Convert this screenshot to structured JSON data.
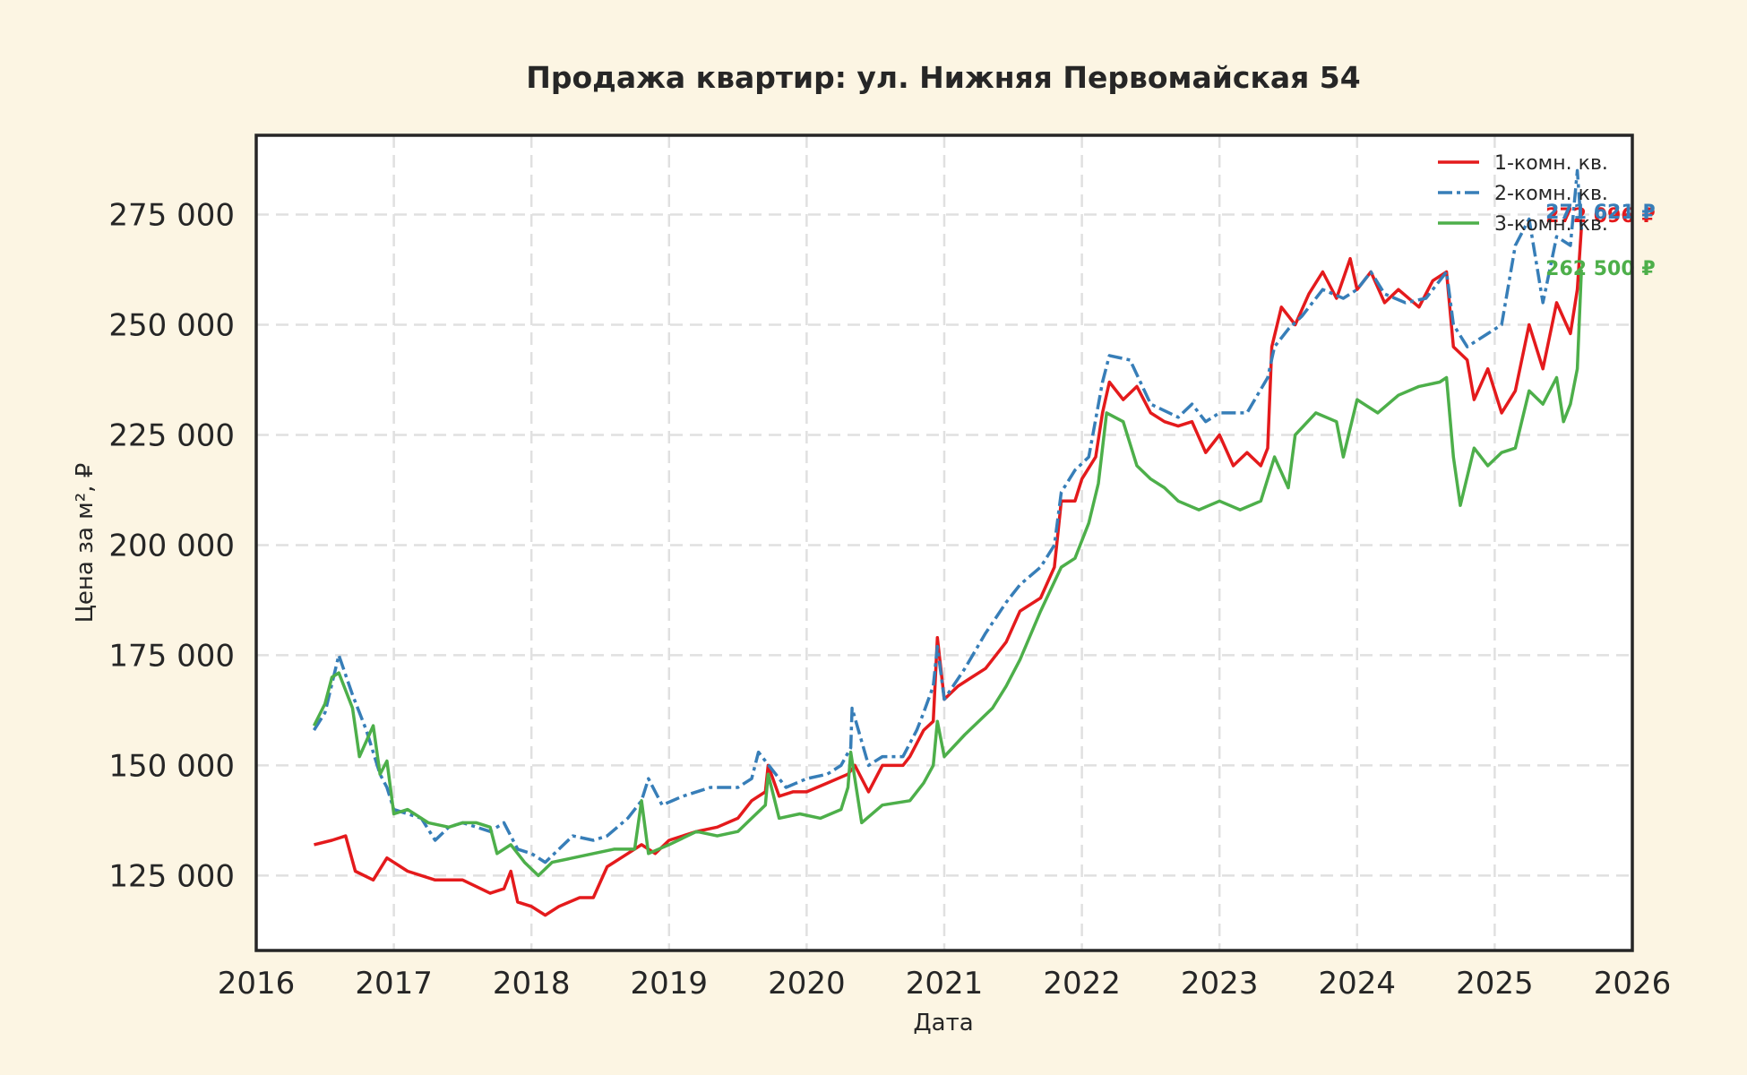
{
  "chart_data": {
    "type": "line",
    "title": "Продажа квартир: ул. Нижняя Первомайская 54",
    "xlabel": "Дата",
    "ylabel": "Цена за м², ₽",
    "xlim": [
      2016,
      2026
    ],
    "ylim": [
      108000,
      293000
    ],
    "x_ticks": [
      "2016",
      "2017",
      "2018",
      "2019",
      "2020",
      "2021",
      "2022",
      "2023",
      "2024",
      "2025",
      "2026"
    ],
    "y_ticks": [
      "125 000",
      "150 000",
      "175 000",
      "200 000",
      "225 000",
      "250 000",
      "275 000"
    ],
    "y_tick_values": [
      125000,
      150000,
      175000,
      200000,
      225000,
      250000,
      275000
    ],
    "grid": true,
    "legend_position": "top-right",
    "series": [
      {
        "name": "1-комн. кв.",
        "color": "#e41a1c",
        "style": "solid",
        "end_label": "272 096 ₽",
        "points": [
          [
            2016.42,
            132000
          ],
          [
            2016.55,
            133000
          ],
          [
            2016.65,
            134000
          ],
          [
            2016.72,
            126000
          ],
          [
            2016.85,
            124000
          ],
          [
            2016.95,
            129000
          ],
          [
            2017.1,
            126000
          ],
          [
            2017.3,
            124000
          ],
          [
            2017.5,
            124000
          ],
          [
            2017.7,
            121000
          ],
          [
            2017.8,
            122000
          ],
          [
            2017.85,
            126000
          ],
          [
            2017.9,
            119000
          ],
          [
            2018.0,
            118000
          ],
          [
            2018.1,
            116000
          ],
          [
            2018.2,
            118000
          ],
          [
            2018.35,
            120000
          ],
          [
            2018.45,
            120000
          ],
          [
            2018.55,
            127000
          ],
          [
            2018.7,
            130000
          ],
          [
            2018.8,
            132000
          ],
          [
            2018.9,
            130000
          ],
          [
            2019.0,
            133000
          ],
          [
            2019.2,
            135000
          ],
          [
            2019.35,
            136000
          ],
          [
            2019.5,
            138000
          ],
          [
            2019.6,
            142000
          ],
          [
            2019.7,
            144000
          ],
          [
            2019.72,
            150000
          ],
          [
            2019.8,
            143000
          ],
          [
            2019.9,
            144000
          ],
          [
            2020.0,
            144000
          ],
          [
            2020.15,
            146000
          ],
          [
            2020.3,
            148000
          ],
          [
            2020.35,
            150000
          ],
          [
            2020.45,
            144000
          ],
          [
            2020.55,
            150000
          ],
          [
            2020.7,
            150000
          ],
          [
            2020.75,
            152000
          ],
          [
            2020.85,
            158000
          ],
          [
            2020.92,
            160000
          ],
          [
            2020.95,
            179000
          ],
          [
            2021.0,
            165000
          ],
          [
            2021.1,
            168000
          ],
          [
            2021.2,
            170000
          ],
          [
            2021.3,
            172000
          ],
          [
            2021.45,
            178000
          ],
          [
            2021.55,
            185000
          ],
          [
            2021.7,
            188000
          ],
          [
            2021.8,
            195000
          ],
          [
            2021.85,
            210000
          ],
          [
            2021.95,
            210000
          ],
          [
            2022.0,
            215000
          ],
          [
            2022.1,
            220000
          ],
          [
            2022.15,
            230000
          ],
          [
            2022.2,
            237000
          ],
          [
            2022.3,
            233000
          ],
          [
            2022.4,
            236000
          ],
          [
            2022.5,
            230000
          ],
          [
            2022.6,
            228000
          ],
          [
            2022.7,
            227000
          ],
          [
            2022.8,
            228000
          ],
          [
            2022.9,
            221000
          ],
          [
            2023.0,
            225000
          ],
          [
            2023.1,
            218000
          ],
          [
            2023.2,
            221000
          ],
          [
            2023.3,
            218000
          ],
          [
            2023.35,
            222000
          ],
          [
            2023.38,
            245000
          ],
          [
            2023.45,
            254000
          ],
          [
            2023.55,
            250000
          ],
          [
            2023.65,
            257000
          ],
          [
            2023.75,
            262000
          ],
          [
            2023.85,
            256000
          ],
          [
            2023.95,
            265000
          ],
          [
            2024.0,
            258000
          ],
          [
            2024.1,
            262000
          ],
          [
            2024.2,
            255000
          ],
          [
            2024.3,
            258000
          ],
          [
            2024.45,
            254000
          ],
          [
            2024.55,
            260000
          ],
          [
            2024.65,
            262000
          ],
          [
            2024.7,
            245000
          ],
          [
            2024.8,
            242000
          ],
          [
            2024.85,
            233000
          ],
          [
            2024.95,
            240000
          ],
          [
            2025.05,
            230000
          ],
          [
            2025.15,
            235000
          ],
          [
            2025.25,
            250000
          ],
          [
            2025.35,
            240000
          ],
          [
            2025.45,
            255000
          ],
          [
            2025.55,
            248000
          ],
          [
            2025.6,
            258000
          ],
          [
            2025.63,
            272096
          ]
        ]
      },
      {
        "name": "2-комн. кв.",
        "color": "#377eb8",
        "style": "dash-dot",
        "end_label": "271 621 ₽",
        "points": [
          [
            2016.42,
            158000
          ],
          [
            2016.5,
            162000
          ],
          [
            2016.6,
            175000
          ],
          [
            2016.7,
            166000
          ],
          [
            2016.8,
            158000
          ],
          [
            2016.9,
            148000
          ],
          [
            2016.95,
            145000
          ],
          [
            2017.0,
            140000
          ],
          [
            2017.1,
            139000
          ],
          [
            2017.2,
            138000
          ],
          [
            2017.3,
            133000
          ],
          [
            2017.4,
            136000
          ],
          [
            2017.5,
            137000
          ],
          [
            2017.6,
            136000
          ],
          [
            2017.7,
            135000
          ],
          [
            2017.8,
            137000
          ],
          [
            2017.9,
            131000
          ],
          [
            2018.0,
            130000
          ],
          [
            2018.1,
            128000
          ],
          [
            2018.2,
            131000
          ],
          [
            2018.3,
            134000
          ],
          [
            2018.45,
            133000
          ],
          [
            2018.55,
            134000
          ],
          [
            2018.7,
            138000
          ],
          [
            2018.8,
            142000
          ],
          [
            2018.85,
            147000
          ],
          [
            2018.95,
            141000
          ],
          [
            2019.1,
            143000
          ],
          [
            2019.3,
            145000
          ],
          [
            2019.5,
            145000
          ],
          [
            2019.6,
            147000
          ],
          [
            2019.65,
            153000
          ],
          [
            2019.75,
            149000
          ],
          [
            2019.85,
            145000
          ],
          [
            2020.0,
            147000
          ],
          [
            2020.15,
            148000
          ],
          [
            2020.25,
            150000
          ],
          [
            2020.32,
            154000
          ],
          [
            2020.33,
            163000
          ],
          [
            2020.45,
            150000
          ],
          [
            2020.55,
            152000
          ],
          [
            2020.7,
            152000
          ],
          [
            2020.8,
            158000
          ],
          [
            2020.85,
            162000
          ],
          [
            2020.92,
            168000
          ],
          [
            2020.95,
            177000
          ],
          [
            2021.0,
            165000
          ],
          [
            2021.15,
            172000
          ],
          [
            2021.3,
            180000
          ],
          [
            2021.45,
            187000
          ],
          [
            2021.55,
            191000
          ],
          [
            2021.7,
            195000
          ],
          [
            2021.8,
            200000
          ],
          [
            2021.85,
            212000
          ],
          [
            2021.95,
            217000
          ],
          [
            2022.05,
            220000
          ],
          [
            2022.15,
            237000
          ],
          [
            2022.2,
            243000
          ],
          [
            2022.35,
            242000
          ],
          [
            2022.5,
            232000
          ],
          [
            2022.7,
            229000
          ],
          [
            2022.8,
            232000
          ],
          [
            2022.9,
            228000
          ],
          [
            2023.0,
            230000
          ],
          [
            2023.2,
            230000
          ],
          [
            2023.35,
            238000
          ],
          [
            2023.4,
            245000
          ],
          [
            2023.5,
            249000
          ],
          [
            2023.6,
            252000
          ],
          [
            2023.75,
            258000
          ],
          [
            2023.9,
            256000
          ],
          [
            2024.0,
            258000
          ],
          [
            2024.1,
            262000
          ],
          [
            2024.2,
            257000
          ],
          [
            2024.35,
            255000
          ],
          [
            2024.5,
            256000
          ],
          [
            2024.65,
            262000
          ],
          [
            2024.7,
            250000
          ],
          [
            2024.8,
            245000
          ],
          [
            2024.95,
            248000
          ],
          [
            2025.05,
            250000
          ],
          [
            2025.15,
            268000
          ],
          [
            2025.25,
            274000
          ],
          [
            2025.35,
            255000
          ],
          [
            2025.45,
            270000
          ],
          [
            2025.55,
            268000
          ],
          [
            2025.6,
            285000
          ],
          [
            2025.63,
            271621
          ]
        ]
      },
      {
        "name": "3-комн. кв.",
        "color": "#4daf4a",
        "style": "solid",
        "end_label": "262 500 ₽",
        "points": [
          [
            2016.42,
            159000
          ],
          [
            2016.5,
            164000
          ],
          [
            2016.55,
            170000
          ],
          [
            2016.6,
            171000
          ],
          [
            2016.7,
            163000
          ],
          [
            2016.75,
            152000
          ],
          [
            2016.85,
            159000
          ],
          [
            2016.9,
            148000
          ],
          [
            2016.95,
            151000
          ],
          [
            2017.0,
            139000
          ],
          [
            2017.1,
            140000
          ],
          [
            2017.25,
            137000
          ],
          [
            2017.4,
            136000
          ],
          [
            2017.5,
            137000
          ],
          [
            2017.6,
            137000
          ],
          [
            2017.7,
            136000
          ],
          [
            2017.75,
            130000
          ],
          [
            2017.85,
            132000
          ],
          [
            2017.95,
            128000
          ],
          [
            2018.05,
            125000
          ],
          [
            2018.15,
            128000
          ],
          [
            2018.3,
            129000
          ],
          [
            2018.45,
            130000
          ],
          [
            2018.6,
            131000
          ],
          [
            2018.75,
            131000
          ],
          [
            2018.8,
            142000
          ],
          [
            2018.85,
            130000
          ],
          [
            2019.0,
            132000
          ],
          [
            2019.2,
            135000
          ],
          [
            2019.35,
            134000
          ],
          [
            2019.5,
            135000
          ],
          [
            2019.6,
            138000
          ],
          [
            2019.7,
            141000
          ],
          [
            2019.72,
            148000
          ],
          [
            2019.8,
            138000
          ],
          [
            2019.95,
            139000
          ],
          [
            2020.1,
            138000
          ],
          [
            2020.25,
            140000
          ],
          [
            2020.3,
            145000
          ],
          [
            2020.32,
            153000
          ],
          [
            2020.4,
            137000
          ],
          [
            2020.55,
            141000
          ],
          [
            2020.75,
            142000
          ],
          [
            2020.85,
            146000
          ],
          [
            2020.92,
            150000
          ],
          [
            2020.95,
            160000
          ],
          [
            2021.0,
            152000
          ],
          [
            2021.15,
            157000
          ],
          [
            2021.25,
            160000
          ],
          [
            2021.35,
            163000
          ],
          [
            2021.45,
            168000
          ],
          [
            2021.55,
            174000
          ],
          [
            2021.7,
            185000
          ],
          [
            2021.85,
            195000
          ],
          [
            2021.95,
            197000
          ],
          [
            2022.05,
            205000
          ],
          [
            2022.12,
            214000
          ],
          [
            2022.18,
            230000
          ],
          [
            2022.3,
            228000
          ],
          [
            2022.4,
            218000
          ],
          [
            2022.5,
            215000
          ],
          [
            2022.6,
            213000
          ],
          [
            2022.7,
            210000
          ],
          [
            2022.85,
            208000
          ],
          [
            2023.0,
            210000
          ],
          [
            2023.15,
            208000
          ],
          [
            2023.3,
            210000
          ],
          [
            2023.4,
            220000
          ],
          [
            2023.5,
            213000
          ],
          [
            2023.55,
            225000
          ],
          [
            2023.7,
            230000
          ],
          [
            2023.85,
            228000
          ],
          [
            2023.9,
            220000
          ],
          [
            2024.0,
            233000
          ],
          [
            2024.15,
            230000
          ],
          [
            2024.3,
            234000
          ],
          [
            2024.45,
            236000
          ],
          [
            2024.6,
            237000
          ],
          [
            2024.65,
            238000
          ],
          [
            2024.7,
            220000
          ],
          [
            2024.75,
            209000
          ],
          [
            2024.85,
            222000
          ],
          [
            2024.95,
            218000
          ],
          [
            2025.05,
            221000
          ],
          [
            2025.15,
            222000
          ],
          [
            2025.25,
            235000
          ],
          [
            2025.35,
            232000
          ],
          [
            2025.45,
            238000
          ],
          [
            2025.5,
            228000
          ],
          [
            2025.55,
            232000
          ],
          [
            2025.6,
            240000
          ],
          [
            2025.63,
            262500
          ]
        ]
      }
    ]
  }
}
